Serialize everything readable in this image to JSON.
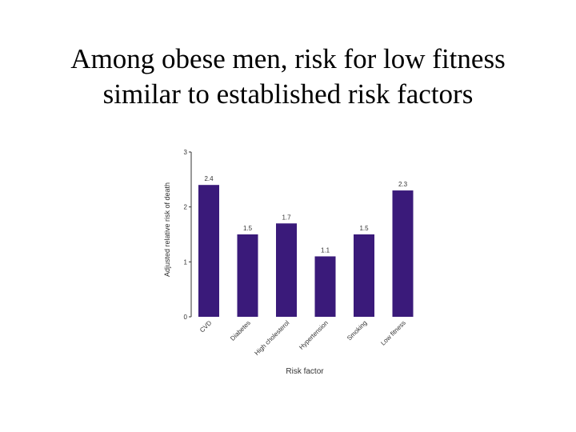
{
  "slide": {
    "title_line1": "Among obese men, risk for low fitness",
    "title_line2": "similar to established risk factors"
  },
  "colors": {
    "bar": "#3a1a7a",
    "axis": "#333333"
  },
  "chart_data": {
    "type": "bar",
    "categories": [
      "CVD",
      "Diabetes",
      "High cholesterol",
      "Hypertension",
      "Smoking",
      "Low fitness"
    ],
    "values": [
      2.4,
      1.5,
      1.7,
      1.1,
      1.5,
      2.3
    ],
    "data_labels": [
      "2.4",
      "1.5",
      "1.7",
      "1.1",
      "1.5",
      "2.3"
    ],
    "xlabel": "Risk factor",
    "ylabel": "Adjusted relative risk of death",
    "ylim": [
      0,
      3
    ],
    "yticks": [
      0,
      1,
      2,
      3
    ],
    "grid": false,
    "legend": "none"
  }
}
